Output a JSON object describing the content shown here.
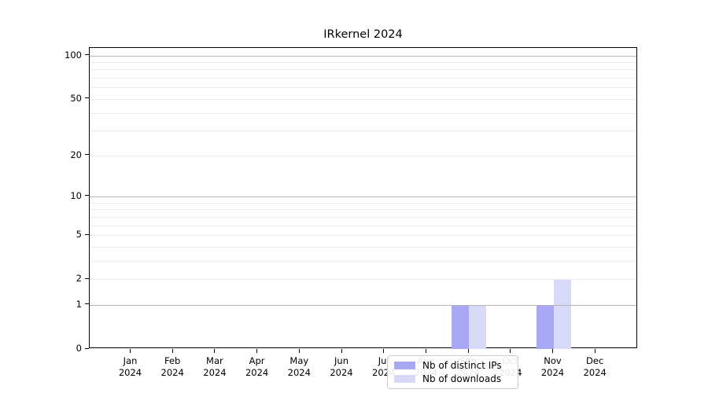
{
  "chart_data": {
    "type": "bar",
    "title": "IRkernel 2024",
    "categories": [
      "Jan 2024",
      "Feb 2024",
      "Mar 2024",
      "Apr 2024",
      "May 2024",
      "Jun 2024",
      "Jul 2024",
      "Aug 2024",
      "Sep 2024",
      "Oct 2024",
      "Nov 2024",
      "Dec 2024"
    ],
    "x_tick_months": [
      "Jan",
      "Feb",
      "Mar",
      "Apr",
      "May",
      "Jun",
      "Jul",
      "Aug",
      "Sep",
      "Oct",
      "Nov",
      "Dec"
    ],
    "x_tick_year": "2024",
    "series": [
      {
        "name": "Nb of distinct IPs",
        "color": "#a8a8f4",
        "values": [
          0,
          0,
          0,
          0,
          0,
          0,
          0,
          0,
          1,
          0,
          1,
          0
        ]
      },
      {
        "name": "Nb of downloads",
        "color": "#d8d8f8",
        "values": [
          0,
          0,
          0,
          0,
          0,
          0,
          0,
          0,
          1,
          0,
          2,
          0
        ]
      }
    ],
    "xlabel": "",
    "ylabel": "",
    "y_scale": "log10(1+value)",
    "y_tick_values": [
      0,
      1,
      2,
      5,
      10,
      20,
      50,
      100
    ],
    "y_gridline_values": [
      1,
      2,
      3,
      4,
      5,
      6,
      7,
      8,
      9,
      10,
      20,
      30,
      40,
      50,
      60,
      70,
      80,
      90,
      100
    ],
    "y_gridline_major_values": [
      1,
      10,
      100
    ],
    "ylim": [
      0,
      113
    ],
    "grid": true,
    "legend_position": "inside lower center-left",
    "colors": {
      "axis": "#000000",
      "grid_major": "#b5b5b5",
      "grid_minor": "#ececec",
      "background": "#ffffff",
      "series_distinct_ips": "#a8a8f4",
      "series_downloads": "#d8d8f8"
    }
  }
}
